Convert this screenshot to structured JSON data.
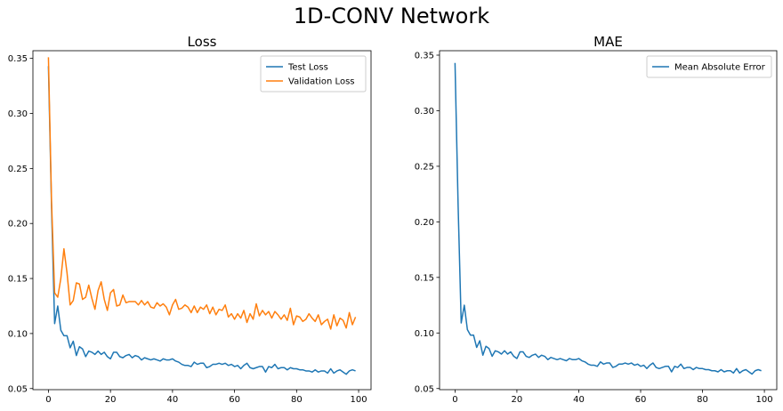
{
  "suptitle": "1D-CONV Network",
  "colors": {
    "blue": "#1f77b4",
    "orange": "#ff7f0e"
  },
  "chart_data": [
    {
      "type": "line",
      "title": "Loss",
      "xlabel": "",
      "ylabel": "",
      "xlim": [
        -5,
        104
      ],
      "ylim": [
        0.049,
        0.357
      ],
      "xticks": [
        0,
        20,
        40,
        60,
        80,
        100
      ],
      "yticks": [
        0.05,
        0.1,
        0.15,
        0.2,
        0.25,
        0.3,
        0.35
      ],
      "grid": false,
      "legend": "top-right",
      "x": [
        0,
        1,
        2,
        3,
        4,
        5,
        6,
        7,
        8,
        9,
        10,
        11,
        12,
        13,
        14,
        15,
        16,
        17,
        18,
        19,
        20,
        21,
        22,
        23,
        24,
        25,
        26,
        27,
        28,
        29,
        30,
        31,
        32,
        33,
        34,
        35,
        36,
        37,
        38,
        39,
        40,
        41,
        42,
        43,
        44,
        45,
        46,
        47,
        48,
        49,
        50,
        51,
        52,
        53,
        54,
        55,
        56,
        57,
        58,
        59,
        60,
        61,
        62,
        63,
        64,
        65,
        66,
        67,
        68,
        69,
        70,
        71,
        72,
        73,
        74,
        75,
        76,
        77,
        78,
        79,
        80,
        81,
        82,
        83,
        84,
        85,
        86,
        87,
        88,
        89,
        90,
        91,
        92,
        93,
        94,
        95,
        96,
        97,
        98,
        99
      ],
      "series": [
        {
          "name": "Test Loss",
          "color": "#1f77b4",
          "values": [
            0.343,
            0.215,
            0.109,
            0.125,
            0.103,
            0.098,
            0.098,
            0.087,
            0.093,
            0.08,
            0.088,
            0.086,
            0.079,
            0.084,
            0.083,
            0.081,
            0.084,
            0.081,
            0.083,
            0.079,
            0.077,
            0.083,
            0.083,
            0.079,
            0.078,
            0.08,
            0.081,
            0.078,
            0.08,
            0.079,
            0.076,
            0.078,
            0.077,
            0.076,
            0.077,
            0.076,
            0.075,
            0.077,
            0.076,
            0.076,
            0.077,
            0.075,
            0.074,
            0.072,
            0.071,
            0.071,
            0.07,
            0.074,
            0.072,
            0.073,
            0.073,
            0.069,
            0.07,
            0.072,
            0.072,
            0.073,
            0.072,
            0.073,
            0.071,
            0.072,
            0.07,
            0.071,
            0.068,
            0.071,
            0.073,
            0.069,
            0.068,
            0.069,
            0.07,
            0.07,
            0.065,
            0.07,
            0.069,
            0.072,
            0.068,
            0.069,
            0.069,
            0.067,
            0.069,
            0.068,
            0.068,
            0.067,
            0.067,
            0.066,
            0.066,
            0.065,
            0.067,
            0.065,
            0.066,
            0.066,
            0.064,
            0.068,
            0.064,
            0.066,
            0.067,
            0.065,
            0.063,
            0.066,
            0.067,
            0.066
          ]
        },
        {
          "name": "Validation Loss",
          "color": "#ff7f0e",
          "values": [
            0.351,
            0.22,
            0.137,
            0.133,
            0.15,
            0.177,
            0.155,
            0.126,
            0.13,
            0.146,
            0.145,
            0.131,
            0.133,
            0.144,
            0.132,
            0.122,
            0.139,
            0.147,
            0.131,
            0.121,
            0.137,
            0.14,
            0.125,
            0.126,
            0.135,
            0.128,
            0.129,
            0.129,
            0.129,
            0.126,
            0.13,
            0.126,
            0.129,
            0.124,
            0.123,
            0.128,
            0.125,
            0.127,
            0.124,
            0.117,
            0.126,
            0.131,
            0.122,
            0.123,
            0.126,
            0.124,
            0.119,
            0.125,
            0.119,
            0.124,
            0.122,
            0.126,
            0.118,
            0.124,
            0.117,
            0.122,
            0.121,
            0.126,
            0.115,
            0.118,
            0.113,
            0.118,
            0.114,
            0.121,
            0.11,
            0.118,
            0.113,
            0.127,
            0.116,
            0.121,
            0.117,
            0.12,
            0.114,
            0.12,
            0.117,
            0.113,
            0.117,
            0.112,
            0.123,
            0.108,
            0.116,
            0.115,
            0.111,
            0.113,
            0.118,
            0.114,
            0.111,
            0.117,
            0.108,
            0.111,
            0.113,
            0.104,
            0.117,
            0.107,
            0.114,
            0.112,
            0.105,
            0.119,
            0.108,
            0.115
          ]
        }
      ]
    },
    {
      "type": "line",
      "title": "MAE",
      "xlabel": "",
      "ylabel": "",
      "xlim": [
        -5,
        104
      ],
      "ylim": [
        0.049,
        0.354
      ],
      "xticks": [
        0,
        20,
        40,
        60,
        80,
        100
      ],
      "yticks": [
        0.05,
        0.1,
        0.15,
        0.2,
        0.25,
        0.3,
        0.35
      ],
      "grid": false,
      "legend": "top-right",
      "x": [
        0,
        1,
        2,
        3,
        4,
        5,
        6,
        7,
        8,
        9,
        10,
        11,
        12,
        13,
        14,
        15,
        16,
        17,
        18,
        19,
        20,
        21,
        22,
        23,
        24,
        25,
        26,
        27,
        28,
        29,
        30,
        31,
        32,
        33,
        34,
        35,
        36,
        37,
        38,
        39,
        40,
        41,
        42,
        43,
        44,
        45,
        46,
        47,
        48,
        49,
        50,
        51,
        52,
        53,
        54,
        55,
        56,
        57,
        58,
        59,
        60,
        61,
        62,
        63,
        64,
        65,
        66,
        67,
        68,
        69,
        70,
        71,
        72,
        73,
        74,
        75,
        76,
        77,
        78,
        79,
        80,
        81,
        82,
        83,
        84,
        85,
        86,
        87,
        88,
        89,
        90,
        91,
        92,
        93,
        94,
        95,
        96,
        97,
        98,
        99
      ],
      "series": [
        {
          "name": "Mean Absolute Error",
          "color": "#1f77b4",
          "values": [
            0.343,
            0.215,
            0.109,
            0.125,
            0.103,
            0.098,
            0.098,
            0.087,
            0.093,
            0.08,
            0.088,
            0.086,
            0.079,
            0.084,
            0.083,
            0.081,
            0.084,
            0.081,
            0.083,
            0.079,
            0.077,
            0.083,
            0.083,
            0.079,
            0.078,
            0.08,
            0.081,
            0.078,
            0.08,
            0.079,
            0.076,
            0.078,
            0.077,
            0.076,
            0.077,
            0.076,
            0.075,
            0.077,
            0.076,
            0.076,
            0.077,
            0.075,
            0.074,
            0.072,
            0.071,
            0.071,
            0.07,
            0.074,
            0.072,
            0.073,
            0.073,
            0.069,
            0.07,
            0.072,
            0.072,
            0.073,
            0.072,
            0.073,
            0.071,
            0.072,
            0.07,
            0.071,
            0.068,
            0.071,
            0.073,
            0.069,
            0.068,
            0.069,
            0.07,
            0.07,
            0.065,
            0.07,
            0.069,
            0.072,
            0.068,
            0.069,
            0.069,
            0.067,
            0.069,
            0.068,
            0.068,
            0.067,
            0.067,
            0.066,
            0.066,
            0.065,
            0.067,
            0.065,
            0.066,
            0.066,
            0.064,
            0.068,
            0.064,
            0.066,
            0.067,
            0.065,
            0.063,
            0.066,
            0.067,
            0.066
          ]
        }
      ]
    }
  ]
}
